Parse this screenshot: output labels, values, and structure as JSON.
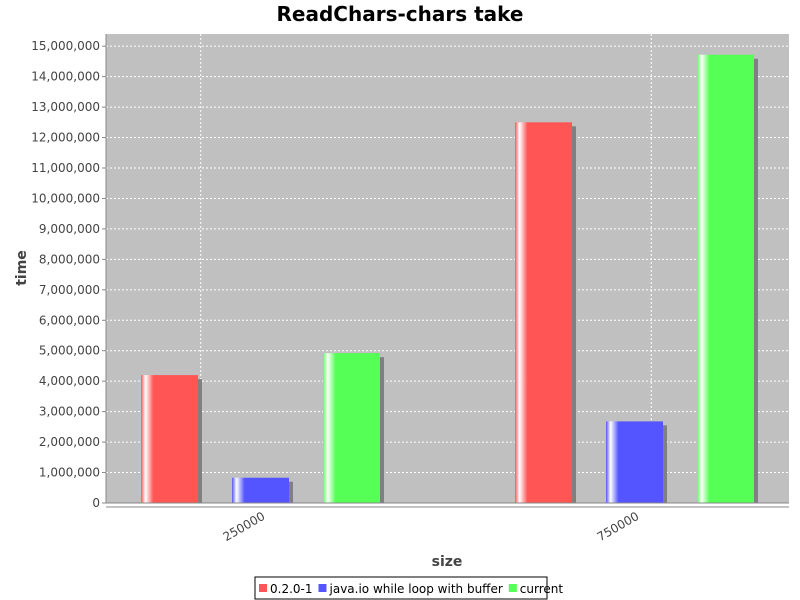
{
  "chart_data": {
    "type": "bar",
    "title": "ReadChars-chars take",
    "xlabel": "size",
    "ylabel": "time",
    "categories": [
      "250000",
      "750000"
    ],
    "series": [
      {
        "name": "0.2.0-1",
        "values": [
          4200000,
          12500000
        ],
        "color": "#ff5555"
      },
      {
        "name": "java.io while loop with buffer",
        "values": [
          830000,
          2680000
        ],
        "color": "#5555ff"
      },
      {
        "name": "current",
        "values": [
          4920000,
          14720000
        ],
        "color": "#55ff55"
      }
    ],
    "ylim": [
      0,
      15400000
    ],
    "yticks": [
      0,
      1000000,
      2000000,
      3000000,
      4000000,
      5000000,
      6000000,
      7000000,
      8000000,
      9000000,
      10000000,
      11000000,
      12000000,
      13000000,
      14000000,
      15000000
    ],
    "ytick_labels": [
      "0",
      "1,000,000",
      "2,000,000",
      "3,000,000",
      "4,000,000",
      "5,000,000",
      "6,000,000",
      "7,000,000",
      "8,000,000",
      "9,000,000",
      "10,000,000",
      "11,000,000",
      "12,000,000",
      "13,000,000",
      "14,000,000",
      "15,000,000"
    ],
    "grid": true,
    "plot_background": "#c0c0c0",
    "grid_color": "#ffffff",
    "legend_position": "bottom"
  }
}
